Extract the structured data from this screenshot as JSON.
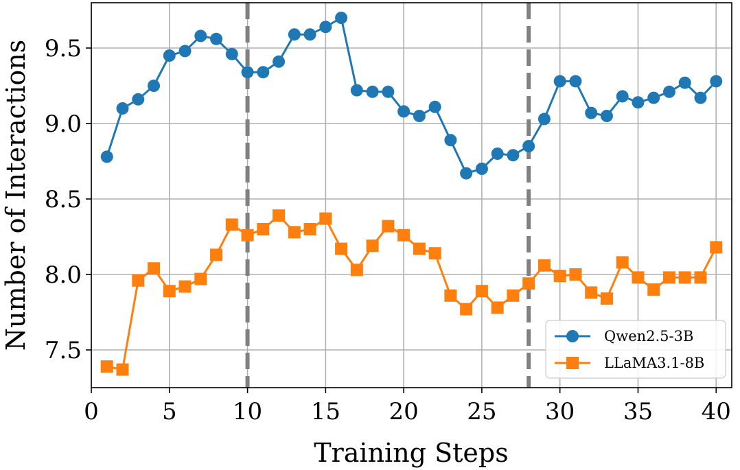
{
  "chart_data": {
    "type": "line",
    "xlabel": "Training Steps",
    "ylabel": "Number of Interactions",
    "xlim": [
      0,
      41
    ],
    "ylim": [
      7.25,
      9.8
    ],
    "xticks": [
      0,
      5,
      10,
      15,
      20,
      25,
      30,
      35,
      40
    ],
    "yticks": [
      7.5,
      8.0,
      8.5,
      9.0,
      9.5
    ],
    "xtick_labels": [
      "0",
      "5",
      "10",
      "15",
      "20",
      "25",
      "30",
      "35",
      "40"
    ],
    "ytick_labels": [
      "7.5",
      "8.0",
      "8.5",
      "9.0",
      "9.5"
    ],
    "grid": true,
    "legend_position": "lower-right",
    "vertical_lines": [
      10,
      28
    ],
    "x": [
      1,
      2,
      3,
      4,
      5,
      6,
      7,
      8,
      9,
      10,
      11,
      12,
      13,
      14,
      15,
      16,
      17,
      18,
      19,
      20,
      21,
      22,
      23,
      24,
      25,
      26,
      27,
      28,
      29,
      30,
      31,
      32,
      33,
      34,
      35,
      36,
      37,
      38,
      39,
      40
    ],
    "series": [
      {
        "name": "Qwen2.5-3B",
        "color": "#1f77b4",
        "marker": "circle",
        "values": [
          8.78,
          9.1,
          9.16,
          9.25,
          9.45,
          9.48,
          9.58,
          9.56,
          9.46,
          9.34,
          9.34,
          9.41,
          9.59,
          9.59,
          9.64,
          9.7,
          9.22,
          9.21,
          9.21,
          9.08,
          9.05,
          9.11,
          8.89,
          8.67,
          8.7,
          8.8,
          8.79,
          8.85,
          9.03,
          9.28,
          9.28,
          9.07,
          9.05,
          9.18,
          9.14,
          9.17,
          9.21,
          9.27,
          9.17,
          9.28
        ]
      },
      {
        "name": "LLaMA3.1-8B",
        "color": "#ff7f0e",
        "marker": "square",
        "values": [
          7.39,
          7.37,
          7.96,
          8.04,
          7.89,
          7.92,
          7.97,
          8.13,
          8.33,
          8.26,
          8.3,
          8.39,
          8.28,
          8.3,
          8.37,
          8.17,
          8.03,
          8.19,
          8.32,
          8.26,
          8.17,
          8.14,
          7.86,
          7.77,
          7.89,
          7.78,
          7.86,
          7.94,
          8.06,
          7.99,
          8.0,
          7.88,
          7.84,
          8.08,
          7.98,
          7.9,
          7.98,
          7.98,
          7.98,
          8.18
        ]
      }
    ]
  }
}
